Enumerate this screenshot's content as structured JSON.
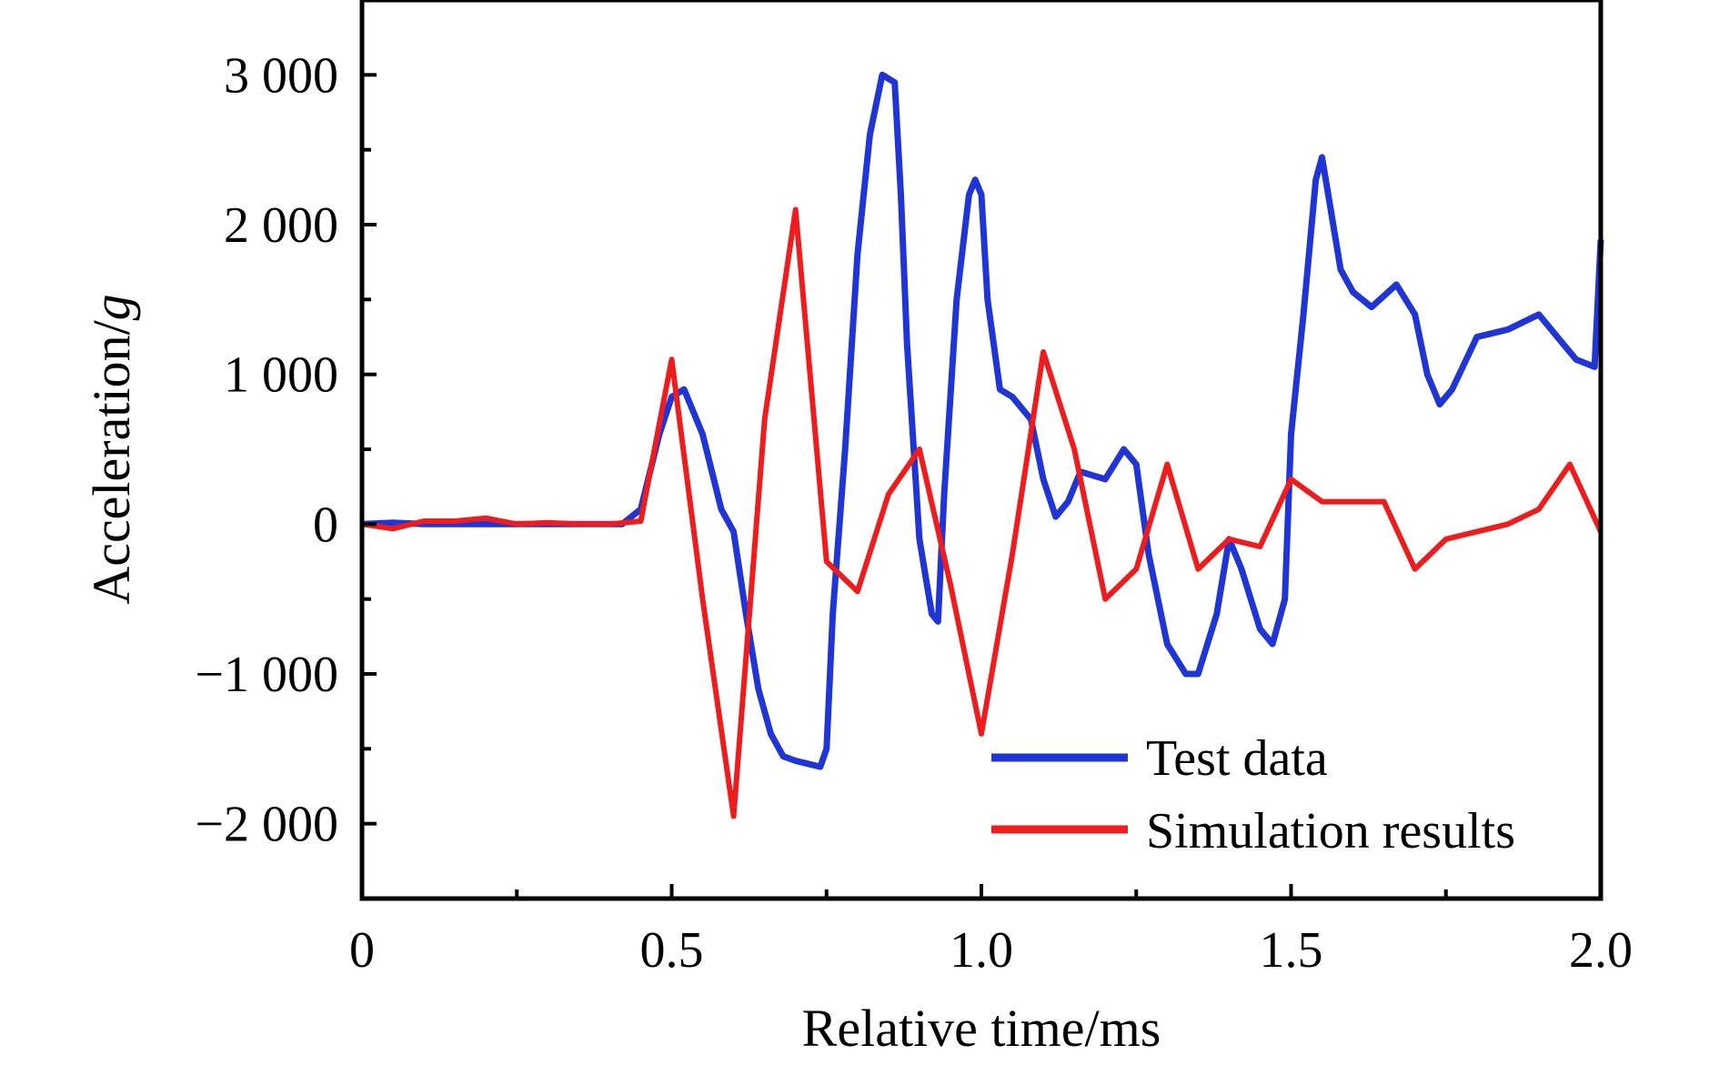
{
  "chart_data": {
    "type": "line",
    "xlabel": "Relative time/ms",
    "ylabel_main": "Acceleration/",
    "ylabel_unit": "g",
    "xlim": [
      0,
      2.0
    ],
    "ylim": [
      -2500,
      3500
    ],
    "x_ticks": [
      {
        "value": 0,
        "label": "0"
      },
      {
        "value": 0.5,
        "label": "0.5"
      },
      {
        "value": 1.0,
        "label": "1.0"
      },
      {
        "value": 1.5,
        "label": "1.5"
      },
      {
        "value": 2.0,
        "label": "2.0"
      }
    ],
    "y_ticks": [
      {
        "value": -2000,
        "label": "−2 000"
      },
      {
        "value": -1000,
        "label": "−1 000"
      },
      {
        "value": 0,
        "label": "0"
      },
      {
        "value": 1000,
        "label": "1 000"
      },
      {
        "value": 2000,
        "label": "2 000"
      },
      {
        "value": 3000,
        "label": "3 000"
      }
    ],
    "legend_position": "bottom-right",
    "grid": false,
    "series": [
      {
        "name": "Test data",
        "color": "#1f35d6",
        "x": [
          0,
          0.05,
          0.1,
          0.2,
          0.3,
          0.42,
          0.45,
          0.48,
          0.5,
          0.52,
          0.55,
          0.58,
          0.6,
          0.62,
          0.64,
          0.66,
          0.68,
          0.7,
          0.72,
          0.74,
          0.75,
          0.76,
          0.78,
          0.8,
          0.82,
          0.84,
          0.86,
          0.87,
          0.88,
          0.9,
          0.92,
          0.93,
          0.94,
          0.96,
          0.98,
          0.99,
          1.0,
          1.01,
          1.03,
          1.05,
          1.08,
          1.1,
          1.12,
          1.14,
          1.16,
          1.2,
          1.23,
          1.25,
          1.27,
          1.3,
          1.33,
          1.35,
          1.38,
          1.4,
          1.42,
          1.45,
          1.47,
          1.49,
          1.5,
          1.52,
          1.54,
          1.55,
          1.56,
          1.58,
          1.6,
          1.63,
          1.67,
          1.7,
          1.72,
          1.74,
          1.76,
          1.8,
          1.85,
          1.9,
          1.93,
          1.96,
          1.99,
          2.0
        ],
        "y": [
          0,
          10,
          0,
          0,
          0,
          0,
          100,
          600,
          850,
          900,
          600,
          100,
          -50,
          -600,
          -1100,
          -1400,
          -1550,
          -1580,
          -1600,
          -1620,
          -1500,
          -600,
          500,
          1800,
          2600,
          3000,
          2950,
          2200,
          1200,
          -100,
          -600,
          -650,
          200,
          1500,
          2200,
          2300,
          2200,
          1500,
          900,
          850,
          700,
          300,
          50,
          150,
          350,
          300,
          500,
          400,
          -200,
          -800,
          -1000,
          -1000,
          -600,
          -100,
          -300,
          -700,
          -800,
          -500,
          600,
          1400,
          2300,
          2450,
          2200,
          1700,
          1550,
          1450,
          1600,
          1400,
          1000,
          800,
          900,
          1250,
          1300,
          1400,
          1250,
          1100,
          1050,
          1900
        ]
      },
      {
        "name": "Simulation results",
        "color": "#ee1c1c",
        "x": [
          0,
          0.05,
          0.1,
          0.15,
          0.2,
          0.25,
          0.3,
          0.35,
          0.4,
          0.45,
          0.5,
          0.55,
          0.6,
          0.65,
          0.7,
          0.75,
          0.8,
          0.85,
          0.9,
          0.95,
          1.0,
          1.05,
          1.1,
          1.15,
          1.2,
          1.25,
          1.3,
          1.35,
          1.4,
          1.45,
          1.5,
          1.55,
          1.6,
          1.65,
          1.7,
          1.75,
          1.8,
          1.85,
          1.9,
          1.95,
          2.0
        ],
        "y": [
          0,
          -30,
          20,
          20,
          40,
          0,
          10,
          0,
          0,
          20,
          1100,
          -500,
          -1950,
          700,
          2100,
          -250,
          -450,
          200,
          500,
          -400,
          -1400,
          -200,
          1150,
          500,
          -500,
          -300,
          400,
          -300,
          -100,
          -150,
          300,
          150,
          150,
          150,
          -300,
          -100,
          -50,
          0,
          100,
          400,
          -50
        ]
      }
    ]
  }
}
